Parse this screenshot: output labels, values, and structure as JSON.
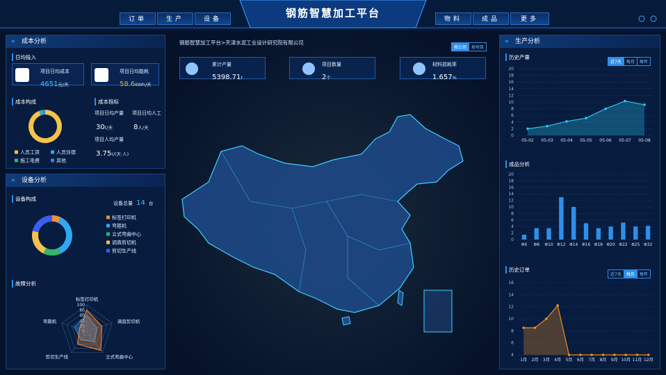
{
  "header": {
    "title": "钢筋智慧加工平台",
    "nav_left": [
      "订单",
      "生产",
      "设备"
    ],
    "nav_right": [
      "物料",
      "成品",
      "更多"
    ]
  },
  "cost": {
    "title": "成本分析",
    "daily_input": "日均投入",
    "cards": [
      {
        "label": "项目日均成本",
        "value": 4651,
        "unit": "元/天"
      },
      {
        "label": "项目日均能耗",
        "value": 58.6,
        "unit": "KWh/天"
      }
    ],
    "composition": {
      "title": "成本构成",
      "type": "pie",
      "categories": [
        "人员工资",
        "人员住宿",
        "施工电费",
        "其他"
      ],
      "values": [
        94,
        3,
        2,
        1
      ],
      "colors": [
        "#f5c24a",
        "#2fa8f0",
        "#35b36a",
        "#3a7df0"
      ]
    },
    "indicators": {
      "title": "成本指标",
      "items": [
        {
          "label": "项目日均产量",
          "value": 30,
          "unit": "t/天"
        },
        {
          "label": "项目日均人工",
          "value": 8,
          "unit": "人/天"
        },
        {
          "label": "项目人均产量",
          "value": 3.75,
          "unit": "t/(天·人)"
        }
      ]
    }
  },
  "equipment": {
    "title": "设备分析",
    "composition": {
      "title": "设备构成",
      "total_label": "设备总量",
      "total": 14,
      "total_unit": "台",
      "type": "pie",
      "categories": [
        "标签打印机",
        "弯箍机",
        "立式弯曲中心",
        "调直剪切机",
        "剪切生产线"
      ],
      "values": [
        1,
        5,
        2,
        3,
        3
      ],
      "colors": [
        "#f08c3a",
        "#2fa8f0",
        "#35b36a",
        "#f5c24a",
        "#3a5ff0"
      ]
    },
    "faults": {
      "title": "故障分析",
      "type": "radar",
      "categories": [
        "标签打印机",
        "调直剪切机",
        "立式弯曲中心",
        "剪切生产线",
        "弯箍机"
      ],
      "rlim": [
        0,
        100
      ],
      "rticks": [
        0,
        20,
        40,
        60,
        80,
        100
      ],
      "series": [
        {
          "color": "#2f8fe8",
          "values": [
            60,
            40,
            50,
            40,
            50
          ]
        },
        {
          "color": "#f08c3a",
          "values": [
            80,
            60,
            90,
            60,
            30
          ]
        }
      ]
    }
  },
  "center": {
    "breadcrumb": "钢筋智慧加工平台>天津水泥工业设计研究院有限公司",
    "buttons": [
      "按公司",
      "按项目"
    ],
    "stats": [
      {
        "label": "累计产量",
        "value": 5398.71,
        "unit": "t"
      },
      {
        "label": "项目数量",
        "value": 2,
        "unit": "个"
      },
      {
        "label": "材料损耗率",
        "value": 1.657,
        "unit": "%"
      }
    ]
  },
  "production": {
    "title": "生产分析",
    "history_output": {
      "title": "历史产量",
      "tabs": [
        "近7天",
        "每月",
        "每年"
      ],
      "type": "line",
      "categories": [
        "05-02",
        "05-03",
        "05-04",
        "05-05",
        "05-06",
        "05-07",
        "05-08"
      ],
      "values": [
        2,
        2.8,
        4.2,
        5.2,
        8,
        10.3,
        9.2
      ],
      "color": "#2fc4f0",
      "ylim": [
        0,
        20
      ],
      "yticks": [
        0,
        2,
        4,
        6,
        8,
        10,
        12,
        14,
        16,
        18,
        20
      ],
      "grid": true
    },
    "products": {
      "title": "成品分析",
      "type": "bar",
      "categories": [
        "Φ6",
        "Φ8",
        "Φ10",
        "Φ12",
        "Φ14",
        "Φ16",
        "Φ18",
        "Φ20",
        "Φ22",
        "Φ25",
        "Φ32"
      ],
      "values": [
        1.5,
        3.5,
        3.5,
        13,
        10,
        5,
        3.5,
        4,
        5.2,
        4,
        4.2
      ],
      "color": "#2f8fe8",
      "ylim": [
        0,
        20
      ],
      "yticks": [
        0,
        2,
        4,
        6,
        8,
        10,
        12,
        14,
        16,
        18,
        20
      ],
      "grid": true
    },
    "history_orders": {
      "title": "历史订单",
      "tabs": [
        "近7天",
        "每月",
        "每年"
      ],
      "type": "line",
      "categories": [
        "1月",
        "2月",
        "3月",
        "4月",
        "5月",
        "6月",
        "7月",
        "8月",
        "9月",
        "10月",
        "11月",
        "12月"
      ],
      "values": [
        8.5,
        8.5,
        10,
        12.2,
        4,
        4,
        4,
        4,
        4,
        4,
        4,
        4
      ],
      "color": "#f08c1e",
      "ylim": [
        4,
        16
      ],
      "yticks": [
        4,
        6,
        8,
        10,
        12,
        14,
        16
      ],
      "grid": true
    }
  }
}
